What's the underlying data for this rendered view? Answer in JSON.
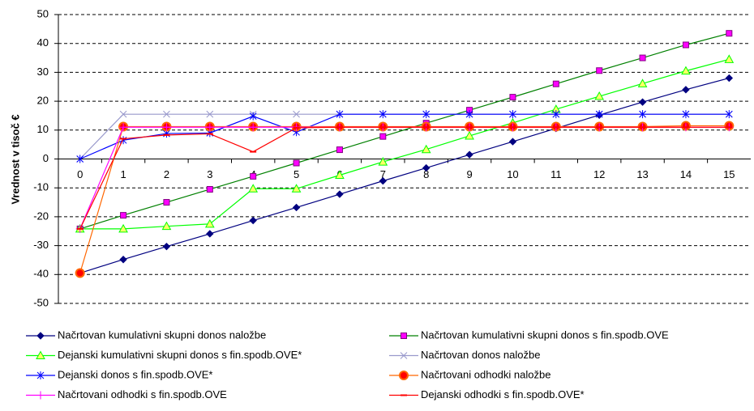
{
  "chart_data": {
    "type": "line",
    "y_label": "Vrednost v tisoč €",
    "categories": [
      "0",
      "1",
      "2",
      "3",
      "4",
      "5",
      "6",
      "7",
      "8",
      "9",
      "10",
      "11",
      "12",
      "13",
      "14",
      "15"
    ],
    "ylim": [
      -50,
      50
    ],
    "yticks": [
      -50,
      -40,
      -30,
      -20,
      -10,
      0,
      10,
      20,
      30,
      40,
      50
    ],
    "grid": true,
    "series": [
      {
        "name": "Načrtovan kumulativni skupni donos naložbe",
        "color": "#000080",
        "marker": "diamond",
        "marker_color": "#000080",
        "values": [
          -39.5,
          -34.8,
          -30.3,
          -25.9,
          -21.3,
          -16.8,
          -12.2,
          -7.6,
          -3.1,
          1.5,
          6.0,
          10.6,
          15.2,
          19.7,
          24.0,
          28.0
        ]
      },
      {
        "name": "Načrtovan kumulativni skupni donos s fin.spodb.OVE",
        "color": "#008000",
        "marker": "square",
        "marker_color": "#ff00ff",
        "values": [
          -24.2,
          -19.5,
          -15.0,
          -10.5,
          -6.0,
          -1.4,
          3.2,
          7.8,
          12.4,
          16.9,
          21.4,
          26.0,
          30.6,
          35.0,
          39.5,
          43.5
        ]
      },
      {
        "name": "Dejanski kumulativni skupni donos s fin.spodb.OVE*",
        "color": "#00ff00",
        "marker": "triangle",
        "marker_color": "#ffff66",
        "values": [
          -24.2,
          -24.2,
          -23.3,
          -22.5,
          -10.3,
          -10.3,
          -5.6,
          -1.0,
          3.3,
          8.0,
          12.5,
          17.2,
          21.7,
          26.1,
          30.5,
          34.5
        ]
      },
      {
        "name": "Načrtovan donos naložbe",
        "color": "#9999cc",
        "marker": "x",
        "marker_color": "#9999cc",
        "values": [
          0,
          15.5,
          15.5,
          15.5,
          15.5,
          15.5,
          15.5,
          15.5,
          15.5,
          15.5,
          15.5,
          15.5,
          15.5,
          15.5,
          15.5,
          15.5
        ]
      },
      {
        "name": "Dejanski donos s fin.spodb.OVE*",
        "color": "#0000ff",
        "marker": "star",
        "marker_color": "#0000ff",
        "values": [
          0,
          6.5,
          8.8,
          9.0,
          14.8,
          9.3,
          15.5,
          15.5,
          15.5,
          15.5,
          15.5,
          15.5,
          15.5,
          15.5,
          15.5,
          15.5
        ]
      },
      {
        "name": "Načrtovani odhodki naložbe",
        "color": "#ff6600",
        "marker": "circle",
        "marker_color": "#ff0000",
        "values": [
          -39.5,
          11.2,
          11.2,
          11.2,
          11.2,
          11.2,
          11.2,
          11.2,
          11.2,
          11.2,
          11.2,
          11.2,
          11.2,
          11.2,
          11.5,
          11.5
        ]
      },
      {
        "name": "Načrtovani odhodki s fin.spodb.OVE",
        "color": "#ff00ff",
        "marker": "plus",
        "marker_color": "#ff00ff",
        "values": [
          -24.2,
          11.0,
          11.0,
          11.0,
          11.0,
          11.0,
          11.0,
          11.0,
          11.0,
          11.0,
          11.0,
          11.0,
          11.0,
          11.0,
          11.0,
          11.0
        ]
      },
      {
        "name": "Dejanski odhodki s fin.spodb.OVE*",
        "color": "#ff0000",
        "marker": "dash",
        "marker_color": "#ff0000",
        "values": [
          -24.2,
          7.0,
          8.3,
          8.7,
          2.5,
          10.8,
          11.0,
          11.0,
          11.0,
          11.0,
          11.0,
          11.0,
          11.0,
          11.0,
          11.0,
          11.0
        ]
      }
    ]
  }
}
